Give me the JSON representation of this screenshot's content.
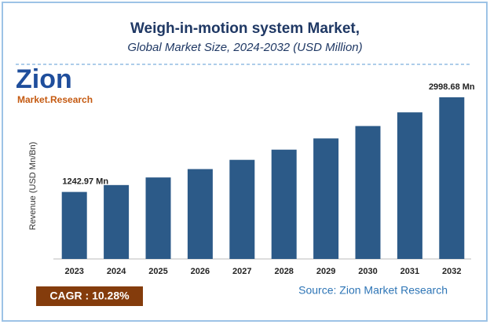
{
  "chart_data": {
    "type": "bar",
    "title": "Weigh-in-motion system Market,",
    "subtitle": "Global Market Size, 2024-2032 (USD Million)",
    "y_label": "Revenue (USD Mn/Bn)",
    "categories": [
      "2023",
      "2024",
      "2025",
      "2026",
      "2027",
      "2028",
      "2029",
      "2030",
      "2031",
      "2032"
    ],
    "values": [
      1242.97,
      1370.8,
      1511.7,
      1667.1,
      1838.5,
      2027.5,
      2236.0,
      2465.8,
      2719.3,
      2998.68
    ],
    "value_labels": [
      "1242.97 Mn",
      null,
      null,
      null,
      null,
      null,
      null,
      null,
      null,
      "2998.68 Mn"
    ],
    "color": "#2c5a88",
    "cagr": "CAGR :  10.28%",
    "source": "Source: Zion Market Research",
    "logo": {
      "name": "Zion",
      "tagline": "Market.Research"
    }
  }
}
